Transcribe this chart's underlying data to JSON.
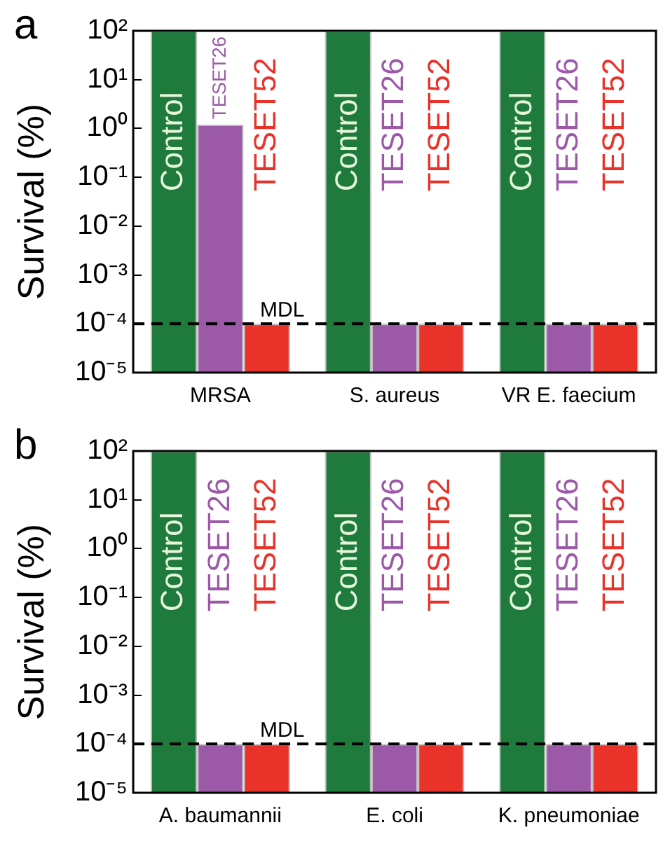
{
  "chart_data": [
    {
      "type": "bar",
      "title": "a",
      "ylabel": "Survival (%)",
      "log": true,
      "legend": false,
      "grid": false,
      "categories": [
        "MRSA",
        "S. aureus",
        "VR E. faecium"
      ],
      "series": [
        {
          "name": "Control",
          "color": "#1e7b3c",
          "values": [
            100,
            100,
            100
          ]
        },
        {
          "name": "TESET26",
          "color": "#9b59a8",
          "values": [
            1.2,
            0.0001,
            0.0001
          ]
        },
        {
          "name": "TESET52",
          "color": "#e8322a",
          "values": [
            0.0001,
            0.0001,
            0.0001
          ]
        }
      ],
      "ylim": [
        1e-05,
        100
      ],
      "yticks": [
        {
          "value": 1e-05,
          "label": "10⁻⁵"
        },
        {
          "value": 0.0001,
          "label": "10⁻⁴"
        },
        {
          "value": 0.001,
          "label": "10⁻³"
        },
        {
          "value": 0.01,
          "label": "10⁻²"
        },
        {
          "value": 0.1,
          "label": "10⁻¹"
        },
        {
          "value": 1,
          "label": "10⁰"
        },
        {
          "value": 10,
          "label": "10¹"
        },
        {
          "value": 100,
          "label": "10²"
        }
      ],
      "ref_lines": [
        {
          "axis": "y",
          "value": 0.0001,
          "label": "MDL",
          "color": "#000000",
          "line_style": "dashed"
        }
      ]
    },
    {
      "type": "bar",
      "title": "b",
      "ylabel": "Survival (%)",
      "log": true,
      "legend": false,
      "grid": false,
      "categories": [
        "A. baumannii",
        "E. coli",
        "K. pneumoniae"
      ],
      "series": [
        {
          "name": "Control",
          "color": "#1e7b3c",
          "values": [
            100,
            100,
            100
          ]
        },
        {
          "name": "TESET26",
          "color": "#9b59a8",
          "values": [
            0.0001,
            0.0001,
            0.0001
          ]
        },
        {
          "name": "TESET52",
          "color": "#e8322a",
          "values": [
            0.0001,
            0.0001,
            0.0001
          ]
        }
      ],
      "ylim": [
        1e-05,
        100
      ],
      "yticks": [
        {
          "value": 1e-05,
          "label": "10⁻⁵"
        },
        {
          "value": 0.0001,
          "label": "10⁻⁴"
        },
        {
          "value": 0.001,
          "label": "10⁻³"
        },
        {
          "value": 0.01,
          "label": "10⁻²"
        },
        {
          "value": 0.1,
          "label": "10⁻¹"
        },
        {
          "value": 1,
          "label": "10⁰"
        },
        {
          "value": 10,
          "label": "10¹"
        },
        {
          "value": 100,
          "label": "10²"
        }
      ],
      "ref_lines": [
        {
          "axis": "y",
          "value": 0.0001,
          "label": "MDL",
          "color": "#000000",
          "line_style": "dashed"
        }
      ]
    }
  ]
}
